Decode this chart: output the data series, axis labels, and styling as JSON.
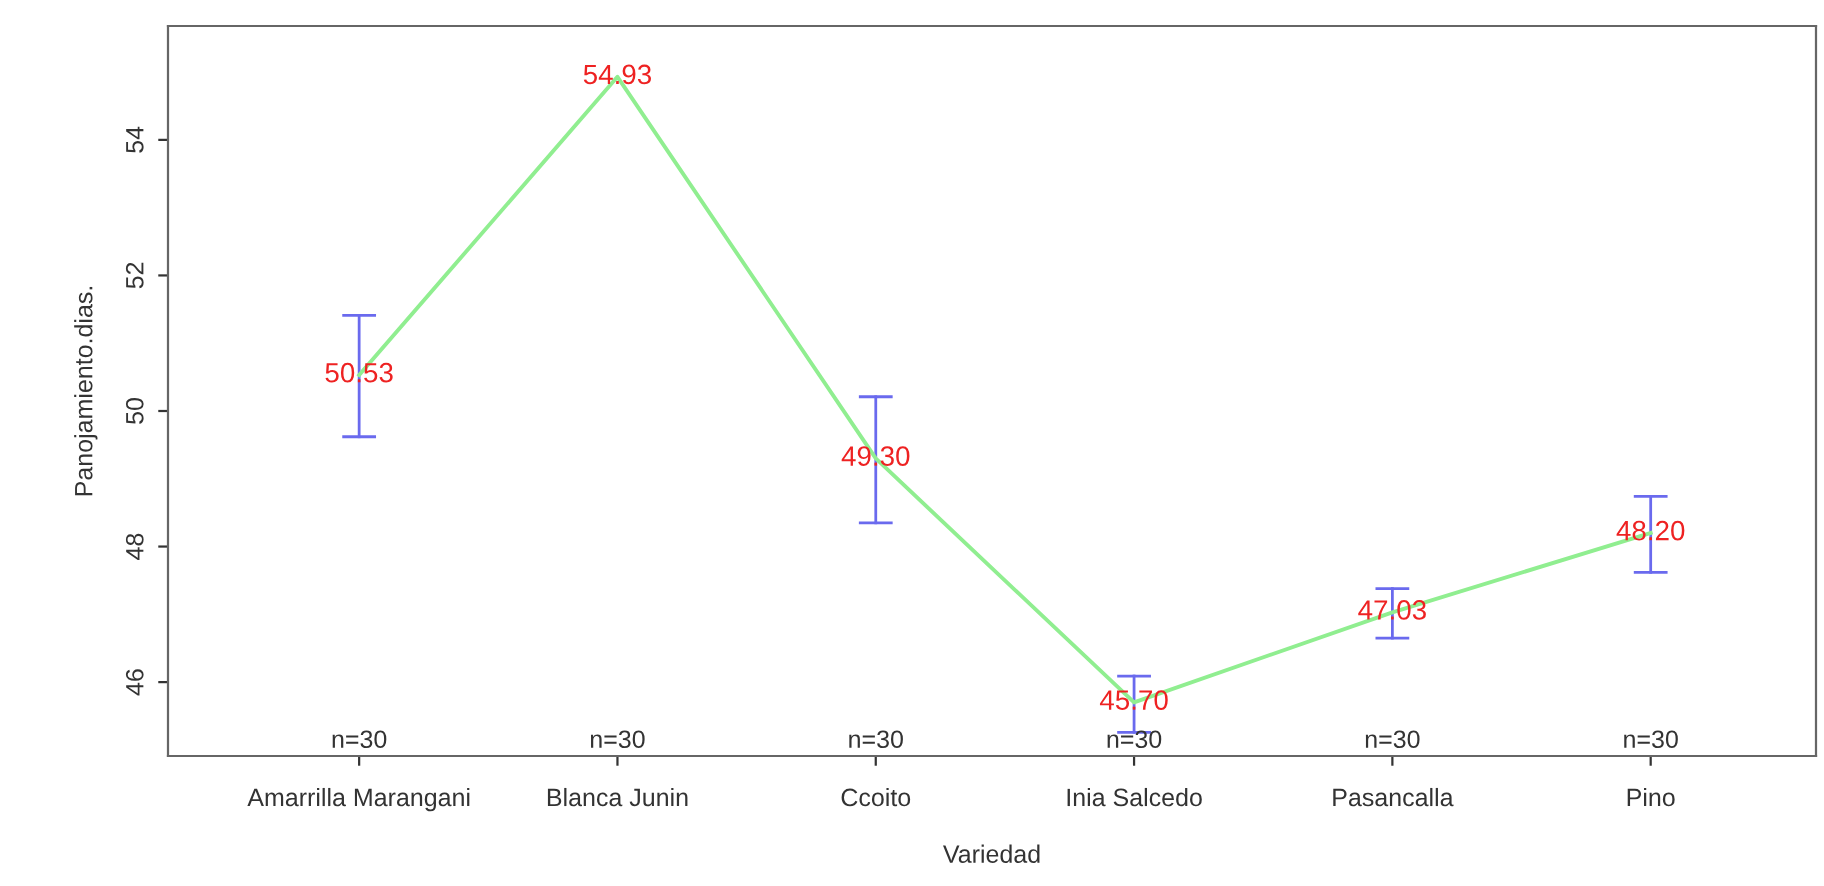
{
  "chart_data": {
    "type": "line",
    "xlabel": "Variedad",
    "ylabel": "Panojamiento.dias.",
    "categories": [
      "Amarrilla Marangani",
      "Blanca Junin",
      "Ccoito",
      "Inia Salcedo",
      "Pasancalla",
      "Pino"
    ],
    "series": [
      {
        "color": "#90ee90",
        "values": [
          50.53,
          54.93,
          49.3,
          45.7,
          47.03,
          48.2
        ],
        "value_labels": [
          "50.53",
          "54.93",
          "49.30",
          "45.70",
          "47.03",
          "48.20"
        ],
        "errors": [
          [
            49.62,
            51.41
          ],
          null,
          [
            48.35,
            50.21
          ],
          [
            45.26,
            46.09
          ],
          [
            46.65,
            47.38
          ],
          [
            47.62,
            48.74
          ]
        ]
      }
    ],
    "ylim": [
      44.91,
      55.68
    ],
    "yticks": [
      46,
      48,
      50,
      52,
      54
    ],
    "grid": false,
    "legend": false,
    "marker": "none",
    "line_style": "solid",
    "annotations": [
      "n=30",
      "n=30",
      "n=30",
      "n=30",
      "n=30",
      "n=30"
    ]
  }
}
